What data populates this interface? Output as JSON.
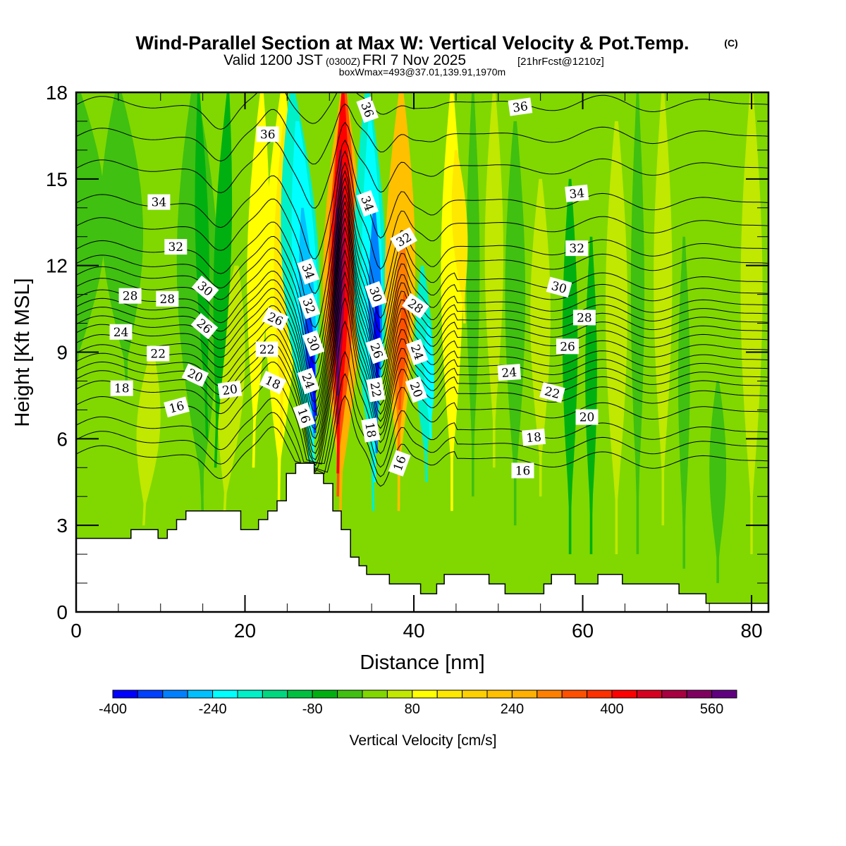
{
  "chart_data": {
    "type": "heatmap",
    "title": "Wind-Parallel Section at Max W: Vertical Velocity & Pot.Temp.",
    "title_mark": "(C)",
    "subtitle": {
      "prefix": "Valid 1200 JST",
      "utc": "(0300Z)",
      "date": "FRI 7 Nov 2025",
      "forecast": "[21hrFcst@1210z]"
    },
    "subtitle2": "boxWmax=493@37.01,139.91,1970m",
    "xlabel": "Distance [nm]",
    "ylabel": "Height [Kft MSL]",
    "xlim": [
      0,
      82
    ],
    "ylim": [
      0,
      18
    ],
    "xticks": [
      0,
      20,
      40,
      60,
      80
    ],
    "yticks": [
      0,
      3,
      6,
      9,
      12,
      15,
      18
    ],
    "x_minor_step": 5,
    "y_minor_step": 1,
    "colorbar": {
      "label": "Vertical Velocity [cm/s]",
      "levels": [
        -400,
        -360,
        -320,
        -280,
        -240,
        -200,
        -160,
        -120,
        -80,
        -40,
        0,
        40,
        80,
        120,
        160,
        200,
        240,
        280,
        320,
        360,
        400,
        440,
        480,
        520,
        560,
        600
      ],
      "tick_labels": [
        "-400",
        "-240",
        "-80",
        "80",
        "240",
        "400",
        "560"
      ],
      "colors": [
        "#0000ff",
        "#0040ff",
        "#0080ff",
        "#00c0ff",
        "#00ffff",
        "#00f0c8",
        "#00d880",
        "#00c040",
        "#00b010",
        "#40c010",
        "#80d800",
        "#c0e800",
        "#ffff00",
        "#ffe800",
        "#ffd000",
        "#ffc000",
        "#ffb000",
        "#ff8000",
        "#ff5000",
        "#ff3000",
        "#ff0000",
        "#d80020",
        "#a80040",
        "#800060",
        "#600080"
      ]
    },
    "terrain_kft": [
      [
        0,
        2.55
      ],
      [
        6.5,
        2.55
      ],
      [
        6.5,
        2.85
      ],
      [
        9.7,
        2.85
      ],
      [
        9.7,
        2.55
      ],
      [
        10.8,
        2.55
      ],
      [
        10.8,
        2.85
      ],
      [
        11.9,
        2.85
      ],
      [
        11.9,
        3.2
      ],
      [
        13,
        3.2
      ],
      [
        13,
        3.5
      ],
      [
        19.5,
        3.5
      ],
      [
        19.5,
        2.85
      ],
      [
        21.6,
        2.85
      ],
      [
        21.6,
        3.2
      ],
      [
        22.7,
        3.2
      ],
      [
        22.7,
        3.5
      ],
      [
        23.8,
        3.5
      ],
      [
        23.8,
        3.85
      ],
      [
        24.9,
        3.85
      ],
      [
        24.9,
        4.8
      ],
      [
        26,
        4.8
      ],
      [
        26,
        5.15
      ],
      [
        28.2,
        5.15
      ],
      [
        28.2,
        4.8
      ],
      [
        29.3,
        4.8
      ],
      [
        29.3,
        4.45
      ],
      [
        30.4,
        4.45
      ],
      [
        30.4,
        3.5
      ],
      [
        31.4,
        3.5
      ],
      [
        31.4,
        2.85
      ],
      [
        32.5,
        2.85
      ],
      [
        32.5,
        1.9
      ],
      [
        33.5,
        1.9
      ],
      [
        33.5,
        1.6
      ],
      [
        34.4,
        1.6
      ],
      [
        34.4,
        1.3
      ],
      [
        37.1,
        1.3
      ],
      [
        37.1,
        0.97
      ],
      [
        40.8,
        0.97
      ],
      [
        40.8,
        0.63
      ],
      [
        42.7,
        0.63
      ],
      [
        42.7,
        0.97
      ],
      [
        43.6,
        0.97
      ],
      [
        43.6,
        1.3
      ],
      [
        48.9,
        1.3
      ],
      [
        48.9,
        0.97
      ],
      [
        50.8,
        0.97
      ],
      [
        50.8,
        0.63
      ],
      [
        55.4,
        0.63
      ],
      [
        55.4,
        0.97
      ],
      [
        56.3,
        0.97
      ],
      [
        56.3,
        1.3
      ],
      [
        59.1,
        1.3
      ],
      [
        59.1,
        0.97
      ],
      [
        61.8,
        0.97
      ],
      [
        61.8,
        1.3
      ],
      [
        64.7,
        1.3
      ],
      [
        64.7,
        0.97
      ],
      [
        71.4,
        0.97
      ],
      [
        71.4,
        0.63
      ],
      [
        74.6,
        0.63
      ],
      [
        74.6,
        0.3
      ],
      [
        82,
        0.3
      ]
    ],
    "theta_contours": {
      "units": "C",
      "interval": 1,
      "range": [
        14,
        37
      ],
      "left_edge_heights_kft": {
        "14": 5.5,
        "15": 6.0,
        "16": 6.5,
        "17": 7.2,
        "18": 7.75,
        "19": 8.1,
        "20": 8.4,
        "21": 8.7,
        "22": 9.0,
        "23": 9.35,
        "24": 9.7,
        "25": 10.0,
        "26": 10.3,
        "27": 10.6,
        "28": 10.9,
        "29": 11.3,
        "30": 11.7,
        "31": 12.1,
        "32": 12.6,
        "33": 13.4,
        "34": 14.2,
        "35": 15.4,
        "36": 16.5,
        "37": 17.6
      }
    },
    "contour_labels": [
      {
        "text": "36",
        "x": 22.7,
        "y": 16.55,
        "rot": 0
      },
      {
        "text": "36",
        "x": 34.5,
        "y": 17.4,
        "rot": 70
      },
      {
        "text": "36",
        "x": 52.6,
        "y": 17.5,
        "rot": -8
      },
      {
        "text": "34",
        "x": 9.8,
        "y": 14.2,
        "rot": 0
      },
      {
        "text": "34",
        "x": 34.5,
        "y": 14.15,
        "rot": 70
      },
      {
        "text": "34",
        "x": 59.3,
        "y": 14.5,
        "rot": -6
      },
      {
        "text": "32",
        "x": 11.8,
        "y": 12.65,
        "rot": 0
      },
      {
        "text": "32",
        "x": 38.8,
        "y": 12.9,
        "rot": -30
      },
      {
        "text": "32",
        "x": 59.3,
        "y": 12.6,
        "rot": 0
      },
      {
        "text": "34",
        "x": 27.5,
        "y": 11.8,
        "rot": 70
      },
      {
        "text": "30",
        "x": 15.3,
        "y": 11.2,
        "rot": 40
      },
      {
        "text": "30",
        "x": 35.5,
        "y": 11.0,
        "rot": 70
      },
      {
        "text": "30",
        "x": 57.2,
        "y": 11.25,
        "rot": 15
      },
      {
        "text": "28",
        "x": 6.4,
        "y": 10.95,
        "rot": 0
      },
      {
        "text": "28",
        "x": 10.8,
        "y": 10.85,
        "rot": 0
      },
      {
        "text": "32",
        "x": 27.6,
        "y": 10.6,
        "rot": 70
      },
      {
        "text": "28",
        "x": 40.2,
        "y": 10.6,
        "rot": 35
      },
      {
        "text": "28",
        "x": 60.2,
        "y": 10.2,
        "rot": 0
      },
      {
        "text": "26",
        "x": 15.2,
        "y": 9.9,
        "rot": 40
      },
      {
        "text": "26",
        "x": 23.6,
        "y": 10.15,
        "rot": 25
      },
      {
        "text": "30",
        "x": 28.1,
        "y": 9.3,
        "rot": 70
      },
      {
        "text": "26",
        "x": 35.6,
        "y": 9.05,
        "rot": 70
      },
      {
        "text": "24",
        "x": 40.4,
        "y": 9.0,
        "rot": 70
      },
      {
        "text": "26",
        "x": 58.2,
        "y": 9.2,
        "rot": 0
      },
      {
        "text": "24",
        "x": 5.3,
        "y": 9.7,
        "rot": 0
      },
      {
        "text": "22",
        "x": 9.7,
        "y": 8.95,
        "rot": 0
      },
      {
        "text": "22",
        "x": 22.6,
        "y": 9.1,
        "rot": 0
      },
      {
        "text": "24",
        "x": 51.3,
        "y": 8.3,
        "rot": -4
      },
      {
        "text": "20",
        "x": 14.1,
        "y": 8.2,
        "rot": 25
      },
      {
        "text": "18",
        "x": 23.3,
        "y": 7.95,
        "rot": 25
      },
      {
        "text": "24",
        "x": 27.5,
        "y": 8.0,
        "rot": 70
      },
      {
        "text": "22",
        "x": 35.5,
        "y": 7.7,
        "rot": 80
      },
      {
        "text": "20",
        "x": 40.3,
        "y": 7.7,
        "rot": 70
      },
      {
        "text": "22",
        "x": 56.4,
        "y": 7.6,
        "rot": 15
      },
      {
        "text": "18",
        "x": 5.4,
        "y": 7.75,
        "rot": 0
      },
      {
        "text": "20",
        "x": 18.2,
        "y": 7.7,
        "rot": -8
      },
      {
        "text": "20",
        "x": 60.5,
        "y": 6.75,
        "rot": 0
      },
      {
        "text": "16",
        "x": 11.9,
        "y": 7.1,
        "rot": -15
      },
      {
        "text": "16",
        "x": 27.0,
        "y": 6.8,
        "rot": 70
      },
      {
        "text": "18",
        "x": 34.9,
        "y": 6.3,
        "rot": 80
      },
      {
        "text": "18",
        "x": 54.2,
        "y": 6.05,
        "rot": -5
      },
      {
        "text": "16",
        "x": 38.3,
        "y": 5.15,
        "rot": -70
      },
      {
        "text": "16",
        "x": 52.9,
        "y": 4.9,
        "rot": 0
      }
    ]
  }
}
